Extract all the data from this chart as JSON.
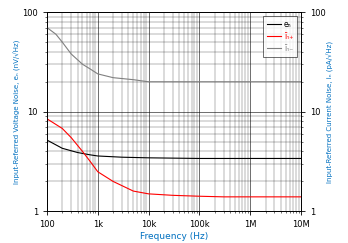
{
  "xlabel": "Frequency (Hz)",
  "ylabel_left": "Input-Referred Voltage Noise, eₙ (nV/√Hz)",
  "ylabel_right": "Input-Referred Current Noise, iₙ (pA/√Hz)",
  "xlim": [
    100,
    10000000.0
  ],
  "ylim": [
    1,
    100
  ],
  "legend_labels": [
    "eₙ",
    "īₙ₊",
    "īₙ₋"
  ],
  "legend_colors": [
    "black",
    "red",
    "gray"
  ],
  "en_x": [
    100,
    200,
    400,
    700,
    1000,
    3000,
    10000,
    100000,
    1000000,
    10000000
  ],
  "en_y": [
    5.2,
    4.3,
    3.9,
    3.7,
    3.6,
    3.5,
    3.45,
    3.4,
    3.4,
    3.4
  ],
  "inp_x": [
    100,
    200,
    300,
    500,
    700,
    1000,
    2000,
    5000,
    10000,
    30000,
    100000,
    300000,
    1000000,
    3000000,
    10000000
  ],
  "inp_y": [
    8.5,
    6.8,
    5.5,
    4.0,
    3.2,
    2.5,
    2.0,
    1.6,
    1.5,
    1.45,
    1.42,
    1.4,
    1.4,
    1.4,
    1.4
  ],
  "inm_x": [
    100,
    150,
    200,
    300,
    500,
    700,
    1000,
    2000,
    5000,
    10000,
    100000,
    1000000,
    3000000,
    10000000
  ],
  "inm_y": [
    70,
    60,
    50,
    38,
    30,
    27,
    24,
    22,
    21,
    20,
    20,
    20,
    20,
    20
  ],
  "left_label_color": "#0070C0",
  "right_label_color": "#0070C0",
  "xlabel_color": "#0070C0",
  "grid_color": "#000000"
}
